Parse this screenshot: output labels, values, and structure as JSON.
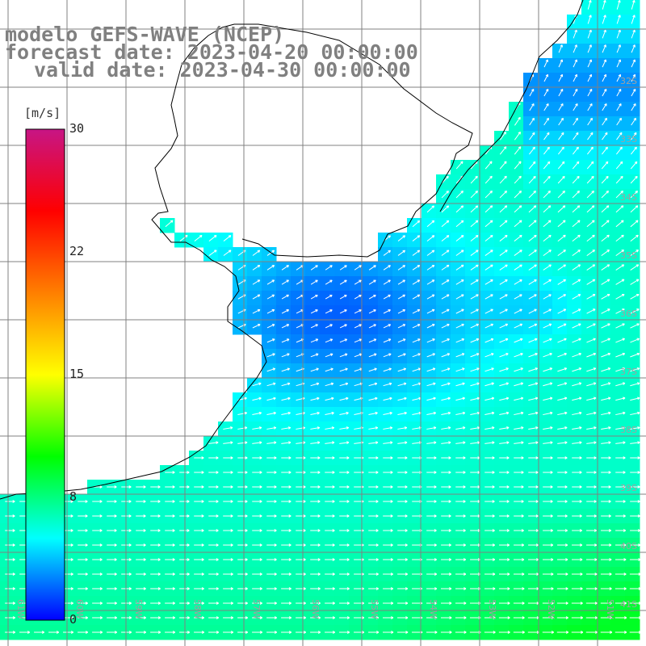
{
  "title": {
    "line1": "modelo GEFS-WAVE (NCEP)",
    "line2": "forecast date: 2023-04-20 00:00:00",
    "line3": "valid date: 2023-04-30 00:00:00"
  },
  "colorbar": {
    "unit": "[m/s]",
    "min": 0,
    "max": 30,
    "ticks": [
      "30",
      "22",
      "15",
      "8",
      "0"
    ],
    "colors": [
      "#0000ff",
      "#00ffff",
      "#00ff00",
      "#ffff00",
      "#ff7f00",
      "#ff0000",
      "#c71585"
    ]
  },
  "map": {
    "lat_labels": [
      "32S",
      "33S",
      "34S",
      "35S",
      "36S",
      "37S",
      "38S",
      "39S",
      "40S",
      "41S"
    ],
    "lon_labels": [
      "61W",
      "60W",
      "59W",
      "58W",
      "57W",
      "56W",
      "55W",
      "54W",
      "53W",
      "52W",
      "51W"
    ],
    "field": "wind speed with direction arrows",
    "colors": {
      "land": "#ffffff",
      "coast": "#000000",
      "grid": "#808080",
      "arrow": "#ffffff"
    }
  }
}
